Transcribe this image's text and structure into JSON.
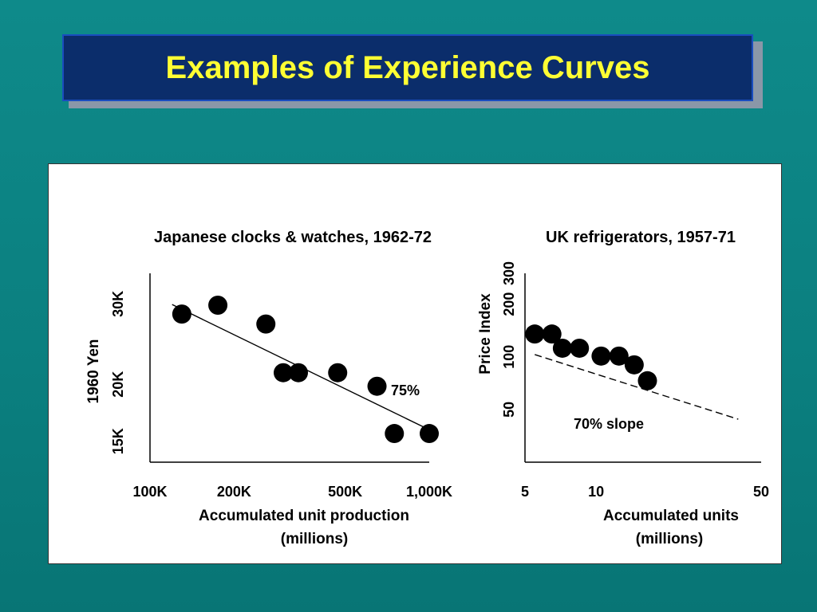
{
  "slide_title": "Examples of Experience Curves",
  "chart_data": [
    {
      "type": "scatter",
      "title": "Japanese clocks & watches, 1962-72",
      "xlabel": "Accumulated unit production",
      "xlabel_unit": "(millions)",
      "ylabel": "1960 Yen",
      "x_scale": "log",
      "y_scale": "log",
      "xticks": [
        {
          "value": 100,
          "label": "100K"
        },
        {
          "value": 200,
          "label": "200K"
        },
        {
          "value": 500,
          "label": "500K"
        },
        {
          "value": 1000,
          "label": "1,000K"
        }
      ],
      "yticks": [
        {
          "value": 15,
          "label": "15K"
        },
        {
          "value": 20,
          "label": "20K"
        },
        {
          "value": 30,
          "label": "30K"
        }
      ],
      "xlim": [
        100,
        1000
      ],
      "ylim": [
        13.5,
        35
      ],
      "points": [
        {
          "x": 130,
          "y": 28.5
        },
        {
          "x": 175,
          "y": 29.8
        },
        {
          "x": 260,
          "y": 27.1
        },
        {
          "x": 300,
          "y": 21.2
        },
        {
          "x": 340,
          "y": 21.2
        },
        {
          "x": 470,
          "y": 21.2
        },
        {
          "x": 650,
          "y": 19.8
        },
        {
          "x": 750,
          "y": 15.6
        },
        {
          "x": 1000,
          "y": 15.6
        }
      ],
      "trend_line": {
        "x": [
          120,
          1000
        ],
        "y": [
          29.9,
          15.9
        ],
        "style": "solid"
      },
      "annotation": "75%"
    },
    {
      "type": "scatter",
      "title": "UK refrigerators, 1957-71",
      "xlabel": "Accumulated units",
      "xlabel_unit": "(millions)",
      "ylabel": "Price Index",
      "x_scale": "log",
      "y_scale": "log",
      "xticks": [
        {
          "value": 5,
          "label": "5"
        },
        {
          "value": 10,
          "label": "10"
        },
        {
          "value": 50,
          "label": "50"
        }
      ],
      "yticks": [
        {
          "value": 50,
          "label": "50"
        },
        {
          "value": 100,
          "label": "100"
        },
        {
          "value": 200,
          "label": "200"
        },
        {
          "value": 300,
          "label": "300"
        }
      ],
      "xlim": [
        5,
        50
      ],
      "ylim": [
        25,
        300
      ],
      "points": [
        {
          "x": 5.5,
          "y": 135
        },
        {
          "x": 6.5,
          "y": 135
        },
        {
          "x": 7.2,
          "y": 112
        },
        {
          "x": 8.5,
          "y": 112
        },
        {
          "x": 10.5,
          "y": 101
        },
        {
          "x": 12.5,
          "y": 101
        },
        {
          "x": 14.5,
          "y": 90
        },
        {
          "x": 16.5,
          "y": 73
        }
      ],
      "trend_line": {
        "x": [
          5.5,
          40
        ],
        "y": [
          103,
          44
        ],
        "style": "dashed"
      },
      "annotation": "70% slope"
    }
  ]
}
